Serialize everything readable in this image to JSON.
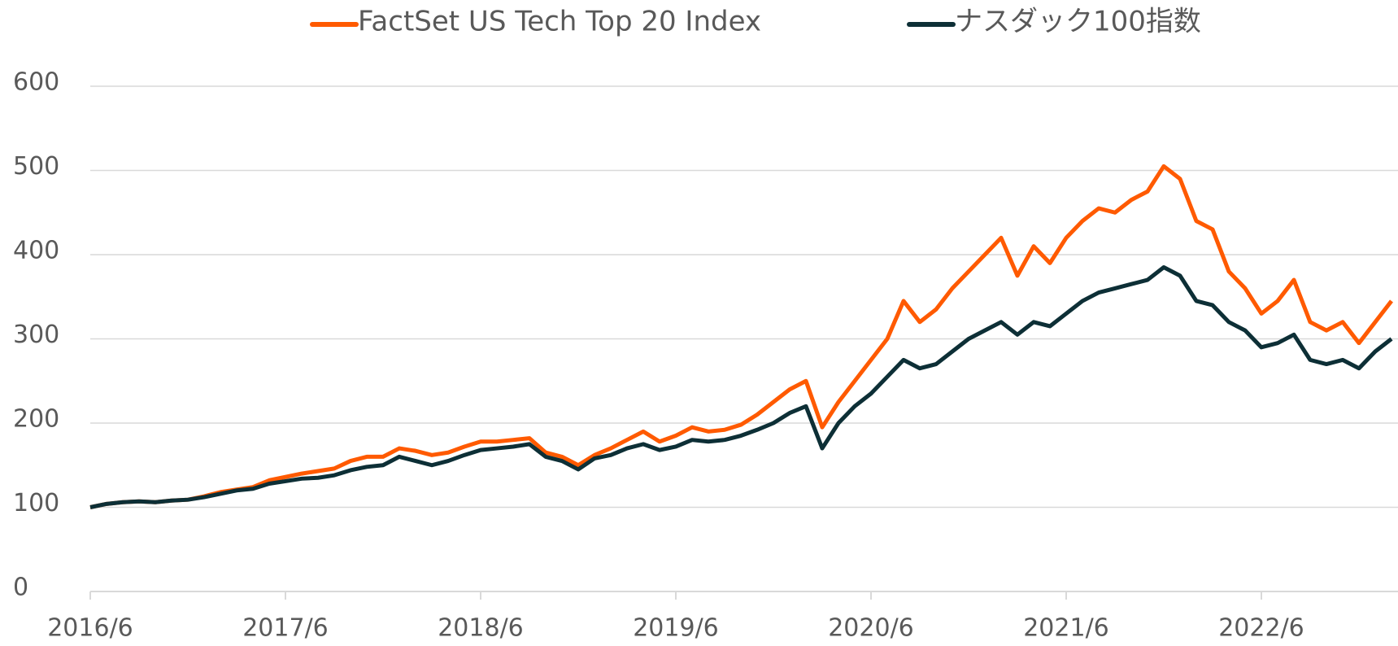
{
  "chart_data": {
    "type": "line",
    "x": [
      "2016/6",
      "2016/7",
      "2016/8",
      "2016/9",
      "2016/10",
      "2016/11",
      "2016/12",
      "2017/1",
      "2017/2",
      "2017/3",
      "2017/4",
      "2017/5",
      "2017/6",
      "2017/7",
      "2017/8",
      "2017/9",
      "2017/10",
      "2017/11",
      "2017/12",
      "2018/1",
      "2018/2",
      "2018/3",
      "2018/4",
      "2018/5",
      "2018/6",
      "2018/7",
      "2018/8",
      "2018/9",
      "2018/10",
      "2018/11",
      "2018/12",
      "2019/1",
      "2019/2",
      "2019/3",
      "2019/4",
      "2019/5",
      "2019/6",
      "2019/7",
      "2019/8",
      "2019/9",
      "2019/10",
      "2019/11",
      "2019/12",
      "2020/1",
      "2020/2",
      "2020/3",
      "2020/4",
      "2020/5",
      "2020/6",
      "2020/7",
      "2020/8",
      "2020/9",
      "2020/10",
      "2020/11",
      "2020/12",
      "2021/1",
      "2021/2",
      "2021/3",
      "2021/4",
      "2021/5",
      "2021/6",
      "2021/7",
      "2021/8",
      "2021/9",
      "2021/10",
      "2021/11",
      "2021/12",
      "2022/1",
      "2022/2",
      "2022/3",
      "2022/4",
      "2022/5",
      "2022/6",
      "2022/7",
      "2022/8",
      "2022/9",
      "2022/10",
      "2022/11",
      "2022/12",
      "2023/1",
      "2023/2"
    ],
    "series": [
      {
        "name": "FactSet US Tech Top 20 Index",
        "color": "#ff5a00",
        "values": [
          100,
          104,
          106,
          107,
          106,
          108,
          109,
          113,
          118,
          121,
          124,
          132,
          136,
          140,
          143,
          146,
          155,
          160,
          160,
          170,
          167,
          162,
          165,
          172,
          178,
          178,
          180,
          182,
          165,
          160,
          150,
          162,
          170,
          180,
          190,
          178,
          185,
          195,
          190,
          192,
          198,
          210,
          225,
          240,
          250,
          195,
          225,
          250,
          275,
          300,
          345,
          320,
          335,
          360,
          380,
          400,
          420,
          375,
          410,
          390,
          420,
          440,
          455,
          450,
          465,
          475,
          505,
          490,
          440,
          430,
          380,
          360,
          330,
          345,
          370,
          320,
          310,
          320,
          295,
          320,
          345
        ]
      },
      {
        "name": "ナスダック100指数",
        "color": "#0d2f36",
        "values": [
          100,
          104,
          106,
          107,
          106,
          108,
          109,
          112,
          116,
          120,
          122,
          128,
          131,
          134,
          135,
          138,
          144,
          148,
          150,
          160,
          155,
          150,
          155,
          162,
          168,
          170,
          172,
          175,
          160,
          155,
          145,
          158,
          162,
          170,
          175,
          168,
          172,
          180,
          178,
          180,
          185,
          192,
          200,
          212,
          220,
          170,
          200,
          220,
          235,
          255,
          275,
          265,
          270,
          285,
          300,
          310,
          320,
          305,
          320,
          315,
          330,
          345,
          355,
          360,
          365,
          370,
          385,
          375,
          345,
          340,
          320,
          310,
          290,
          295,
          305,
          275,
          270,
          275,
          265,
          285,
          300
        ]
      }
    ],
    "xticks": [
      "2016/6",
      "2017/6",
      "2018/6",
      "2019/6",
      "2020/6",
      "2021/6",
      "2022/6"
    ],
    "ylim": [
      0,
      600
    ],
    "yticks": [
      0,
      100,
      200,
      300,
      400,
      500,
      600
    ],
    "grid": true,
    "legend": "top"
  }
}
